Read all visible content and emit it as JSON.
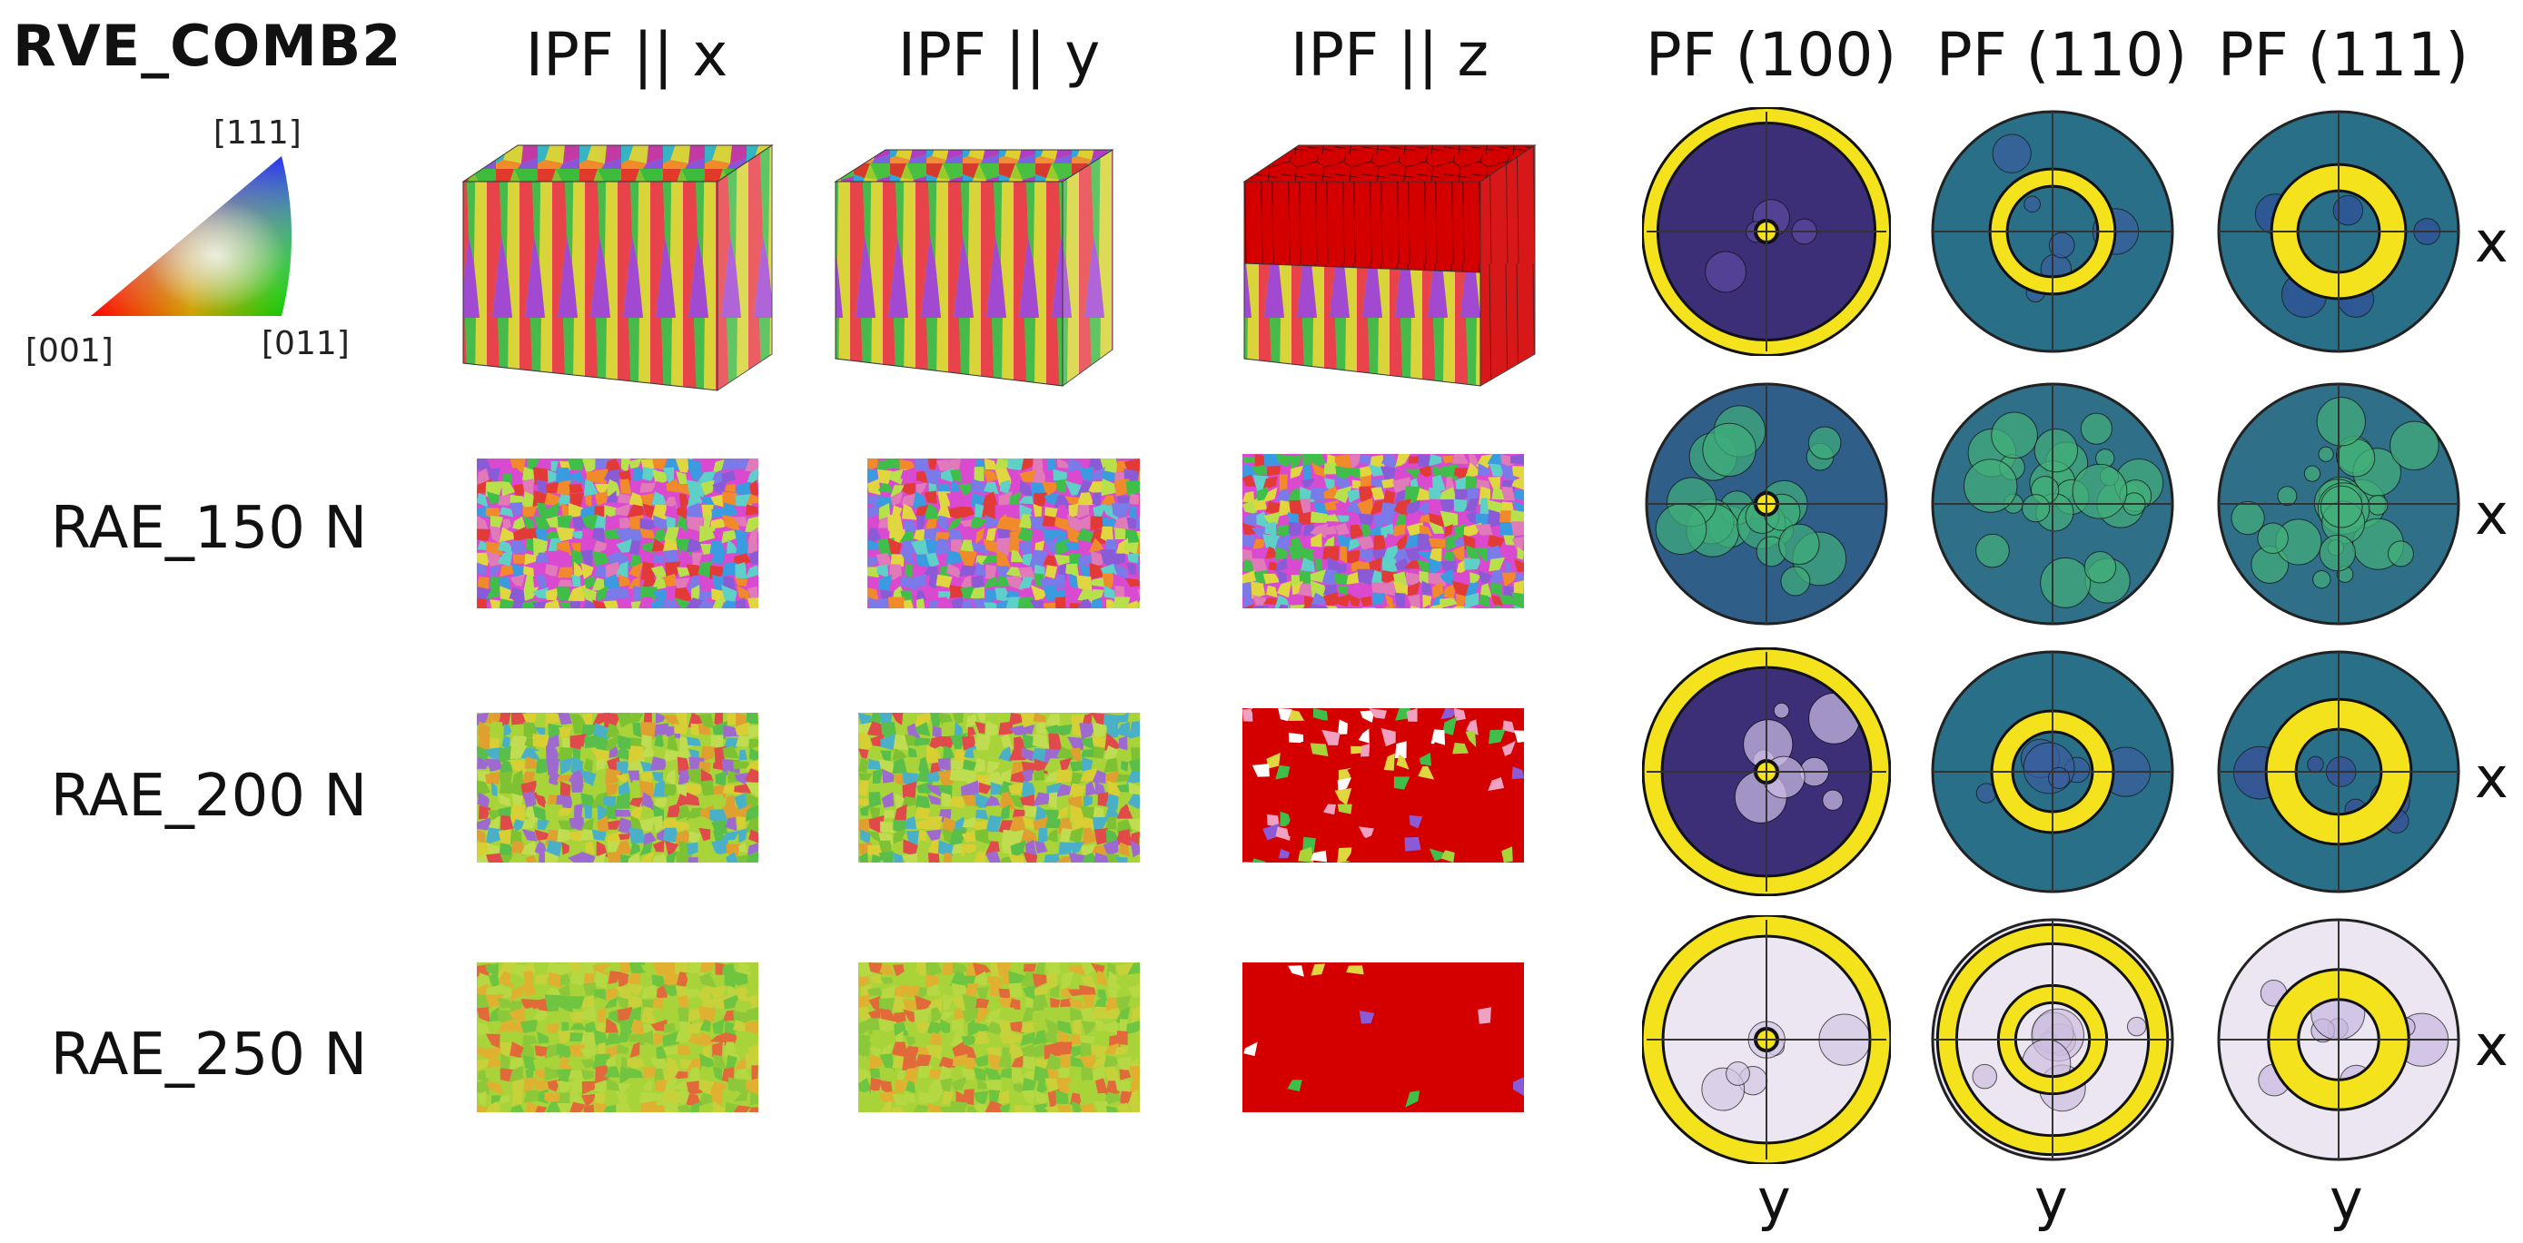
{
  "title": "RVE_COMB2",
  "columns": {
    "ipf_x": "IPF || x",
    "ipf_y": "IPF || y",
    "ipf_z": "IPF || z",
    "pf_100": "PF (100)",
    "pf_110": "PF (110)",
    "pf_111": "PF (111)"
  },
  "legend": {
    "top": "[111]",
    "left": "[001]",
    "right": "[011]"
  },
  "rows": [
    {
      "label": "",
      "axis": "x",
      "kind": "rve"
    },
    {
      "label": "RAE_150 N",
      "axis": "x",
      "kind": "mixed"
    },
    {
      "label": "RAE_200 N",
      "axis": "x",
      "kind": "green"
    },
    {
      "label": "RAE_250 N",
      "axis": "x",
      "kind": "strong"
    }
  ],
  "bottom_axis": [
    "y",
    "y",
    "y"
  ],
  "colors": {
    "red": "#d40000",
    "yellow": "#f4e21c",
    "pf_dark": "#3d2e78",
    "pf_teal": "#2a6f88",
    "pf_light": "#ece6f2"
  }
}
